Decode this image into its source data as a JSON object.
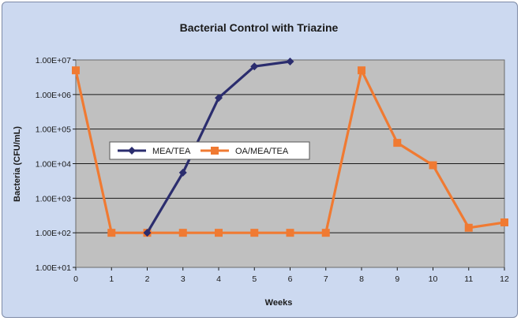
{
  "chart_data": {
    "type": "line",
    "title": "Bacterial Control with Triazine",
    "xlabel": "Weeks",
    "ylabel": "Bacteria (CFU/mL)",
    "x_ticks": [
      "0",
      "1",
      "2",
      "3",
      "4",
      "5",
      "6",
      "7",
      "8",
      "9",
      "10",
      "11",
      "12"
    ],
    "y_ticks": [
      "1.00E+01",
      "1.00E+02",
      "1.00E+03",
      "1.00E+04",
      "1.00E+05",
      "1.00E+06",
      "1.00E+07"
    ],
    "xlim": [
      0,
      12
    ],
    "ylim": [
      10,
      10000000
    ],
    "y_scale": "log",
    "grid": "horizontal",
    "legend_position": "left-middle",
    "series": [
      {
        "name": "MEA/TEA",
        "color": "#2b2d6e",
        "marker": "diamond",
        "x": [
          2,
          3,
          4,
          5,
          6
        ],
        "y": [
          100,
          5500,
          800000,
          6500000,
          9000000
        ]
      },
      {
        "name": "OA/MEA/TEA",
        "color": "#f07a32",
        "marker": "square",
        "x": [
          0,
          1,
          2,
          3,
          4,
          5,
          6,
          7,
          8,
          9,
          10,
          11,
          12
        ],
        "y": [
          5000000,
          100,
          100,
          100,
          100,
          100,
          100,
          100,
          5000000,
          40000,
          9000,
          140,
          200
        ]
      }
    ]
  }
}
